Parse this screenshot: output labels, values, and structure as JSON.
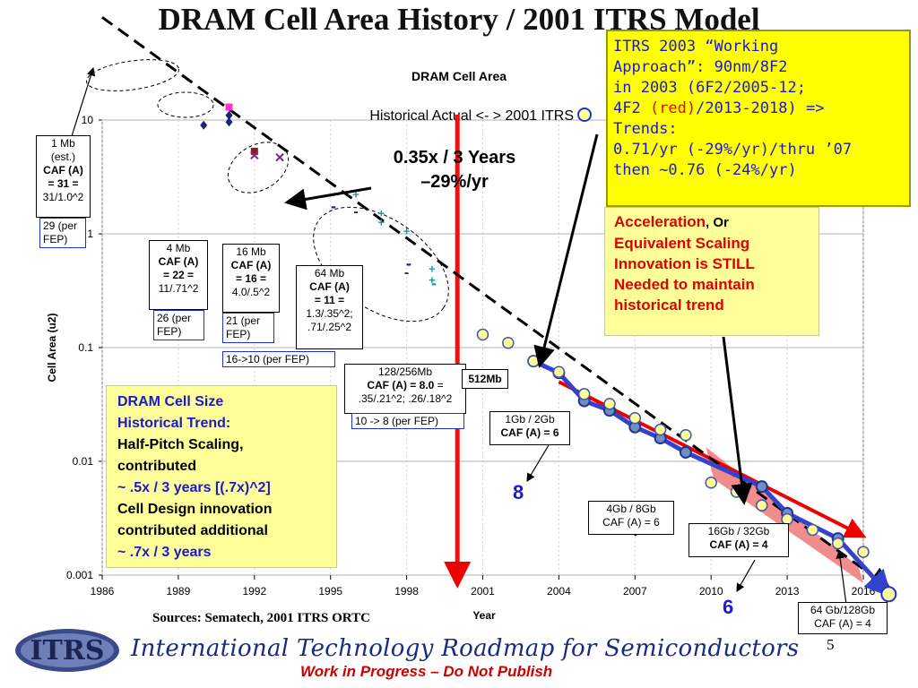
{
  "page": {
    "title": "DRAM Cell Area History / 2001 ITRS Model",
    "page_number": "5"
  },
  "chart_data": {
    "type": "scatter",
    "title": "DRAM Cell Area",
    "subtitle": "Historical Actual <- > 2001 ITRS",
    "xlabel": "Year",
    "ylabel": "Cell Area (u2)",
    "xlim": [
      1986,
      2016
    ],
    "ylim": [
      0.001,
      10
    ],
    "yscale": "log",
    "x_ticks": [
      "1986",
      "1989",
      "1992",
      "1995",
      "1998",
      "2001",
      "2004",
      "2007",
      "2010",
      "2013",
      "2016"
    ],
    "y_ticks": [
      "0.001",
      "0.01",
      "0.1",
      "1",
      "10"
    ],
    "grid": true,
    "series": [
      {
        "name": "2001 ITRS",
        "marker": "yellow-circle",
        "points": [
          [
            2001,
            0.13
          ],
          [
            2002,
            0.11
          ],
          [
            2003,
            0.076
          ],
          [
            2004,
            0.061
          ],
          [
            2005,
            0.039
          ],
          [
            2006,
            0.032
          ],
          [
            2007,
            0.024
          ],
          [
            2008,
            0.019
          ],
          [
            2009,
            0.017
          ],
          [
            2010,
            0.0065
          ],
          [
            2011,
            0.0054
          ],
          [
            2012,
            0.0041
          ],
          [
            2013,
            0.0031
          ],
          [
            2014,
            0.0025
          ],
          [
            2015,
            0.0019
          ],
          [
            2016,
            0.0016
          ],
          [
            2017,
            0.00068
          ]
        ]
      },
      {
        "name": "ITRS 2003 Working Approach",
        "color": "#3344cc",
        "points": [
          [
            2003,
            0.076
          ],
          [
            2004,
            0.06
          ],
          [
            2005,
            0.034
          ],
          [
            2006,
            0.028
          ],
          [
            2007,
            0.02
          ],
          [
            2008,
            0.016
          ],
          [
            2009,
            0.012
          ],
          [
            2012,
            0.006
          ],
          [
            2013,
            0.0035
          ],
          [
            2015,
            0.0021
          ],
          [
            2017,
            0.00068
          ]
        ]
      },
      {
        "name": "Historical actual",
        "markers": "mixed",
        "points": [
          [
            1990,
            9.0
          ],
          [
            1991,
            13.0
          ],
          [
            1991,
            11.0
          ],
          [
            1991,
            9.6
          ],
          [
            1992,
            5.3
          ],
          [
            1992,
            4.9
          ],
          [
            1993,
            4.7
          ],
          [
            1996,
            2.2
          ],
          [
            1997,
            1.25
          ],
          [
            1998,
            1.05
          ],
          [
            1996,
            1.55
          ],
          [
            1997,
            1.5
          ],
          [
            1998,
            0.45
          ],
          [
            1999,
            0.49
          ],
          [
            1999,
            0.39
          ]
        ]
      }
    ],
    "trendlines": [
      {
        "label": "0.35x / 3 Years",
        "sublabel": "–29%/yr",
        "style": "dashed",
        "from": [
          1986,
          80
        ],
        "to": [
          2017,
          0.00078
        ]
      },
      {
        "label": "0.71/yr",
        "color": "#ee0000",
        "from": [
          2004,
          0.05
        ],
        "to": [
          2016,
          0.0022
        ]
      },
      {
        "label": "0.76/yr",
        "color": "#ee0000",
        "fill": "wedge"
      }
    ],
    "annotations": [
      {
        "text": "8"
      },
      {
        "text": "6"
      }
    ],
    "vertical_line": {
      "x": 2000,
      "color": "#ee1111"
    }
  },
  "labels": {
    "dram_1mb": {
      "l1": "1 Mb",
      "l2": "(est.)",
      "l3": "CAF (A)",
      "l4": "= 31 =",
      "l5": "31/1.0^2"
    },
    "dram_1mb_fep": {
      "l1": "29 (per",
      "l2": "FEP)"
    },
    "dram_4mb": {
      "l1": "4 Mb",
      "l2": "CAF (A)",
      "l3": "= 22 =",
      "l4": "11/.71^2"
    },
    "dram_4mb_fep": {
      "l1": "26 (per",
      "l2": "FEP)"
    },
    "dram_16mb": {
      "l1": "16 Mb",
      "l2": "CAF (A)",
      "l3": "= 16 =",
      "l4": "4.0/.5^2"
    },
    "dram_16mb_fep": {
      "l1": "21 (per",
      "l2": "FEP)"
    },
    "dram_64mb": {
      "l1": "64 Mb",
      "l2": "CAF (A)",
      "l3": "= 11 =",
      "l4": "1.3/.35^2;",
      "l5": ".71/.25^2"
    },
    "fep_16_10": "16->10 (per FEP)",
    "dram_128mb": {
      "l1": "128/256Mb",
      "l2a": "CAF (A) = 8.0",
      "l2b": " =",
      "l3": ".35/.21^2; .26/.18^2"
    },
    "fep_10_8": "10 -> 8 (per FEP)",
    "dram_512mb": "512Mb",
    "dram_1gb": {
      "l1": "1Gb / 2Gb",
      "l2": "CAF (A) = 6"
    },
    "dram_4gb": {
      "l1": "4Gb / 8Gb",
      "l2": "CAF (A) = 6"
    },
    "dram_16gb": {
      "l1": "16Gb / 32Gb",
      "l2": "CAF (A) = 4"
    },
    "dram_64gb": {
      "l1": "64 Gb/128Gb",
      "l2": "CAF (A) = 4"
    },
    "trend_main": "0.35x / 3 Years",
    "trend_sub": "–29%/yr",
    "num_8": "8",
    "num_6": "6",
    "sources": "Sources:  Sematech, 2001 ITRS ORTC",
    "minus_marks": [
      "-",
      "-",
      "-",
      "-"
    ],
    "plus_marks": [
      "+",
      "+",
      "+",
      "+",
      "+",
      "+",
      "+"
    ]
  },
  "itrs_note": {
    "l1": "ITRS 2003 “Working",
    "l2": "Approach”: 90nm/8F2",
    "l3": "in 2003 (6F2/2005-12;",
    "l4a": "4F2 ",
    "l4b": "(red)",
    "l4c": "/2013-2018) =>",
    "l5": "Trends:",
    "l6": "0.71/yr (-29%/yr)/thru ’07",
    "l7": "then ~0.76 (-24%/yr)"
  },
  "accel_note": {
    "l1a": "Acceleration",
    "l1b": ", Or",
    "l2": "Equivalent Scaling",
    "l3": "Innovation is STILL",
    "l4": "Needed to maintain",
    "l5": "historical trend"
  },
  "trend_note": {
    "l1": "DRAM Cell Size",
    "l2": "Historical Trend:",
    "l3": "Half-Pitch Scaling,",
    "l4": "contributed",
    "l5": "~ .5x / 3 years [(.7x)^2]",
    "l6": "Cell Design innovation",
    "l7": "contributed additional",
    "l8": "~ .7x / 3 years"
  },
  "footer": {
    "logo_text": "ITRS",
    "title": "International Technology Roadmap for Semiconductors",
    "wip": "Work in Progress – Do Not Publish"
  },
  "colors": {
    "title_blue": "#1a1acc",
    "accent_red": "#ee0000",
    "note_yellow": "#ffff00",
    "box_yellow": "#ffff99"
  }
}
